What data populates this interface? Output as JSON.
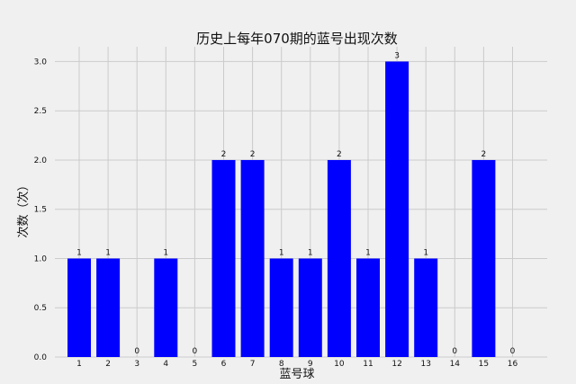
{
  "chart_data": {
    "type": "bar",
    "title": "历史上每年070期的蓝号出现次数",
    "xlabel": "蓝号球",
    "ylabel": "次数（次）",
    "categories": [
      "1",
      "2",
      "3",
      "4",
      "5",
      "6",
      "7",
      "8",
      "9",
      "10",
      "11",
      "12",
      "13",
      "14",
      "15",
      "16"
    ],
    "values": [
      1,
      1,
      0,
      1,
      0,
      2,
      2,
      1,
      1,
      2,
      1,
      3,
      1,
      0,
      2,
      0
    ],
    "data_labels": [
      "1",
      "1",
      "0",
      "1",
      "0",
      "2",
      "2",
      "1",
      "1",
      "2",
      "1",
      "3",
      "1",
      "0",
      "2",
      "0"
    ],
    "yticks": [
      "0.0",
      "0.5",
      "1.0",
      "1.5",
      "2.0",
      "2.5",
      "3.0"
    ],
    "ylim": [
      0,
      3.15
    ],
    "grid": true,
    "bar_color": "#0000ff",
    "background_color": "#f0f0f0",
    "grid_color": "#cbcbcb"
  }
}
